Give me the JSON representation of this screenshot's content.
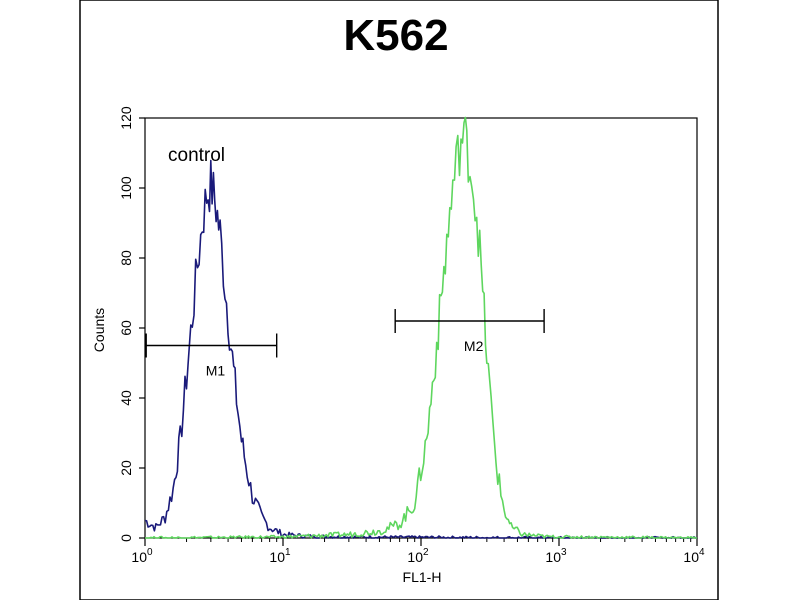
{
  "chart_data": {
    "type": "line",
    "title": "K562",
    "xlabel": "FL1-H",
    "ylabel": "Counts",
    "x_scale": "log",
    "xlim": [
      1,
      10000
    ],
    "ylim": [
      0,
      120
    ],
    "x_ticks": [
      {
        "base": "10",
        "exp": "0",
        "value": 1
      },
      {
        "base": "10",
        "exp": "1",
        "value": 10
      },
      {
        "base": "10",
        "exp": "2",
        "value": 100
      },
      {
        "base": "10",
        "exp": "3",
        "value": 1000
      },
      {
        "base": "10",
        "exp": "4",
        "value": 10000
      }
    ],
    "y_ticks": [
      "0",
      "20",
      "40",
      "60",
      "80",
      "100",
      "120"
    ],
    "annotation": "control",
    "series": [
      {
        "color": "#1a1a7a",
        "points": [
          [
            1.0,
            5
          ],
          [
            1.2,
            3
          ],
          [
            1.4,
            6
          ],
          [
            1.6,
            14
          ],
          [
            1.8,
            28
          ],
          [
            2.0,
            46
          ],
          [
            2.2,
            63
          ],
          [
            2.4,
            78
          ],
          [
            2.6,
            90
          ],
          [
            2.8,
            98
          ],
          [
            3.0,
            101
          ],
          [
            3.2,
            97
          ],
          [
            3.5,
            87
          ],
          [
            3.8,
            72
          ],
          [
            4.2,
            55
          ],
          [
            4.6,
            40
          ],
          [
            5.0,
            28
          ],
          [
            5.5,
            19
          ],
          [
            6.0,
            12
          ],
          [
            7.0,
            6
          ],
          [
            8.0,
            3
          ],
          [
            9.0,
            2
          ],
          [
            10,
            1
          ],
          [
            15,
            0.5
          ],
          [
            30,
            0.3
          ],
          [
            100,
            0.2
          ],
          [
            1000,
            0
          ],
          [
            10000,
            0
          ]
        ]
      },
      {
        "color": "#5ed65e",
        "points": [
          [
            1,
            0
          ],
          [
            10,
            0.3
          ],
          [
            30,
            1
          ],
          [
            50,
            2
          ],
          [
            70,
            4
          ],
          [
            90,
            10
          ],
          [
            110,
            28
          ],
          [
            130,
            55
          ],
          [
            150,
            80
          ],
          [
            170,
            100
          ],
          [
            190,
            112
          ],
          [
            205,
            115
          ],
          [
            220,
            110
          ],
          [
            240,
            100
          ],
          [
            260,
            88
          ],
          [
            280,
            70
          ],
          [
            300,
            52
          ],
          [
            330,
            33
          ],
          [
            360,
            18
          ],
          [
            400,
            8
          ],
          [
            450,
            3
          ],
          [
            550,
            1
          ],
          [
            800,
            0.4
          ],
          [
            1000,
            0.3
          ],
          [
            10000,
            0
          ]
        ]
      }
    ],
    "markers": [
      {
        "label": "M1",
        "x_start": 1.02,
        "x_end": 9.0,
        "y": 55
      },
      {
        "label": "M2",
        "x_start": 65,
        "x_end": 780,
        "y": 62
      }
    ]
  }
}
